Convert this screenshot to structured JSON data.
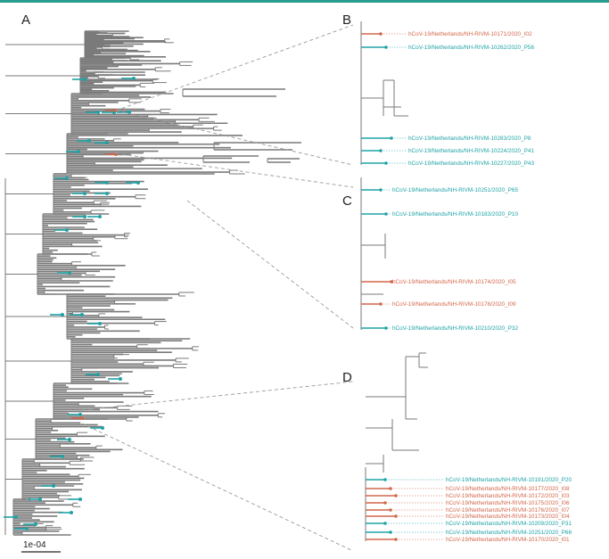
{
  "figure": {
    "accent_colors": {
      "top_rule": "#2a9d8f",
      "tree": "#7a7a7a",
      "patient": "#1fa2a6",
      "staff": "#d2674a"
    },
    "panels": {
      "A": {
        "letter": "A",
        "scale_label": "1e-04"
      },
      "B": {
        "letter": "B",
        "labels": [
          {
            "text": "hCoV-19/Netherlands/NH-RIVM-10171/2020_I02",
            "group": "staff"
          },
          {
            "text": "hCoV-19/Netherlands/NH-RIVM-10262/2020_P56",
            "group": "patient"
          },
          {
            "text": "hCoV-19/Netherlands/NH-RIVM-10283/2020_P8",
            "group": "patient"
          },
          {
            "text": "hCoV-19/Netherlands/NH-RIVM-10224/2020_P41",
            "group": "patient"
          },
          {
            "text": "hCoV-19/Netherlands/NH-RIVM-10227/2020_P43",
            "group": "patient"
          }
        ]
      },
      "C": {
        "letter": "C",
        "labels": [
          {
            "text": "hCoV-19/Netherlands/NH-RIVM-10251/2020_P65",
            "group": "patient"
          },
          {
            "text": "hCoV-19/Netherlands/NH-RIVM-10183/2020_P10",
            "group": "patient"
          },
          {
            "text": "hCoV-19/Netherlands/NH-RIVM-10174/2020_I05",
            "group": "staff"
          },
          {
            "text": "hCoV-19/Netherlands/NH-RIVM-10178/2020_I09",
            "group": "staff"
          },
          {
            "text": "hCoV-19/Netherlands/NH-RIVM-10210/2020_P32",
            "group": "patient"
          }
        ]
      },
      "D": {
        "letter": "D",
        "labels": [
          {
            "text": "hCoV-19/Netherlands/NH-RIVM-10191/2020_P20",
            "group": "patient"
          },
          {
            "text": "hCoV-19/Netherlands/NH-RIVM-10177/2020_I08",
            "group": "staff"
          },
          {
            "text": "hCoV-19/Netherlands/NH-RIVM-10172/2020_I03",
            "group": "staff"
          },
          {
            "text": "hCoV-19/Netherlands/NH-RIVM-10175/2020_I06",
            "group": "staff"
          },
          {
            "text": "hCoV-19/Netherlands/NH-RIVM-10176/2020_I07",
            "group": "staff"
          },
          {
            "text": "hCoV-19/Netherlands/NH-RIVM-10173/2020_I04",
            "group": "staff"
          },
          {
            "text": "hCoV-19/Netherlands/NH-RIVM-10209/2020_P31",
            "group": "patient"
          },
          {
            "text": "hCoV-19/Netherlands/NH-RIVM-10251/2020_P66",
            "group": "patient"
          },
          {
            "text": "hCoV-19/Netherlands/NH-RIVM-10170/2020_I01",
            "group": "staff"
          }
        ]
      }
    }
  }
}
